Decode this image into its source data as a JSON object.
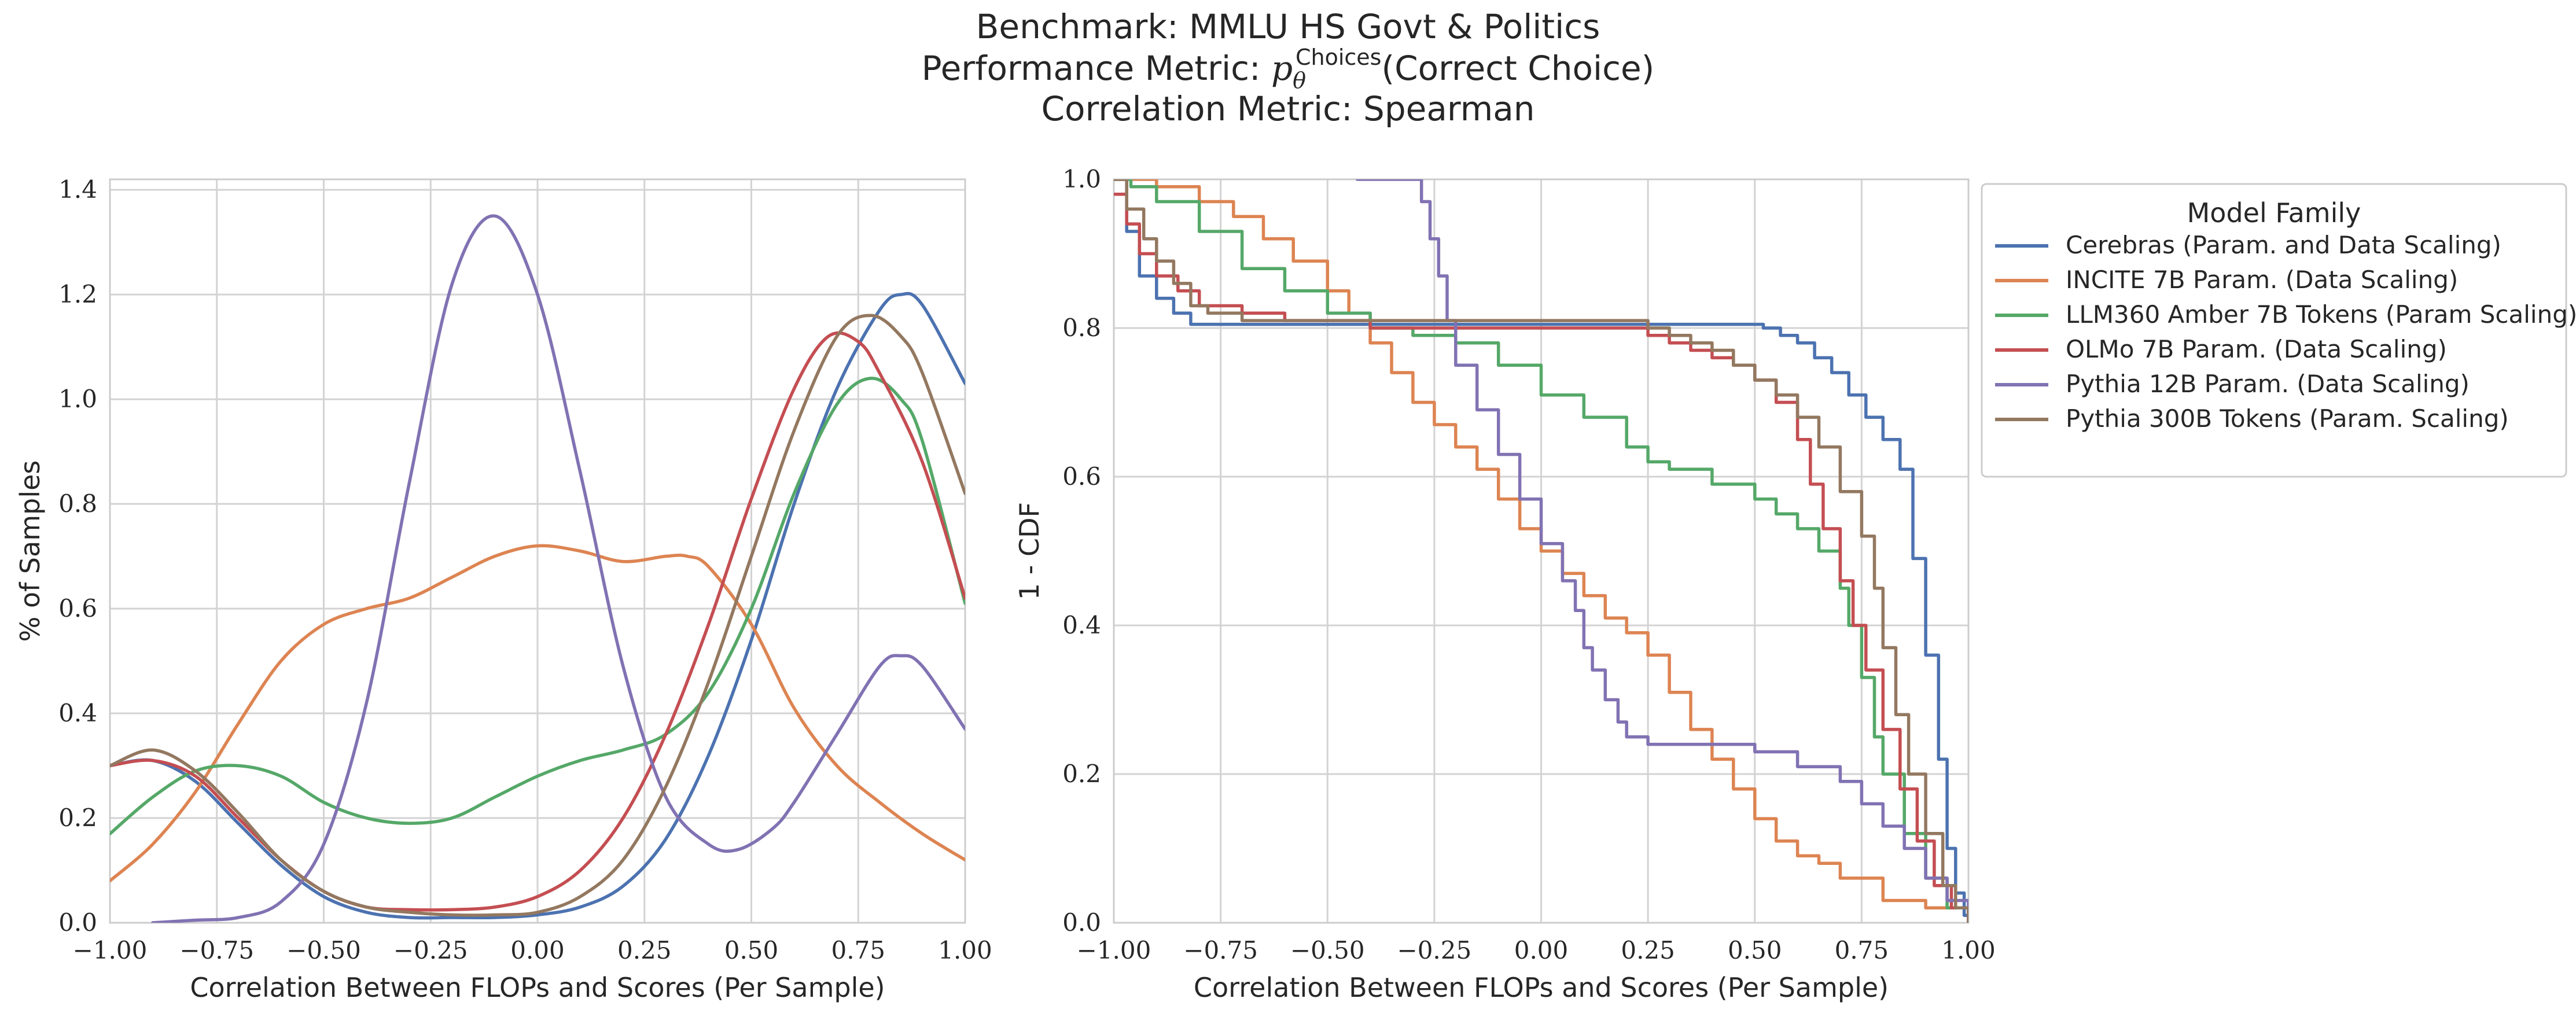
{
  "title_lines": [
    "Benchmark: MMLU HS Govt & Politics",
    "Performance Metric: pθChoices(Correct Choice)",
    "Correlation Metric: Spearman"
  ],
  "title_metric": {
    "prefix": "Performance Metric: ",
    "p": "p",
    "sub": "θ",
    "sup": "Choices",
    "suffix": "(Correct Choice)"
  },
  "colors": {
    "Cerebras": "#4c72b0",
    "INCITE": "#dd8452",
    "LLM360": "#55a868",
    "OLMo": "#c44e52",
    "Pythia12B": "#8172b3",
    "Pythia300B": "#937860",
    "grid": "#d3d3d3",
    "spine": "#cccccc",
    "text": "#262626"
  },
  "legend": {
    "title": "Model Family",
    "placement": "outside-right",
    "entries": [
      {
        "label": "Cerebras (Param. and Data Scaling)",
        "color_key": "Cerebras"
      },
      {
        "label": "INCITE 7B Param. (Data Scaling)",
        "color_key": "INCITE"
      },
      {
        "label": "LLM360 Amber 7B Tokens (Param Scaling)",
        "color_key": "LLM360"
      },
      {
        "label": "OLMo 7B Param. (Data Scaling)",
        "color_key": "OLMo"
      },
      {
        "label": "Pythia 12B Param. (Data Scaling)",
        "color_key": "Pythia12B"
      },
      {
        "label": "Pythia 300B Tokens (Param. Scaling)",
        "color_key": "Pythia300B"
      }
    ]
  },
  "chart_data": [
    {
      "type": "line",
      "xlabel": "Correlation Between FLOPs and Scores (Per Sample)",
      "ylabel": "% of Samples",
      "xlim": [
        -1.0,
        1.0
      ],
      "ylim": [
        0.0,
        1.42
      ],
      "xticks": [
        "−1.00",
        "−0.75",
        "−0.50",
        "−0.25",
        "0.00",
        "0.25",
        "0.50",
        "0.75",
        "1.00"
      ],
      "yticks": [
        "0.0",
        "0.2",
        "0.4",
        "0.6",
        "0.8",
        "1.0",
        "1.2",
        "1.4"
      ],
      "grid": true,
      "series": [
        {
          "name": "Cerebras (Param. and Data Scaling)",
          "color_key": "Cerebras",
          "x": [
            -1.0,
            -0.9,
            -0.8,
            -0.7,
            -0.6,
            -0.5,
            -0.4,
            -0.3,
            -0.2,
            -0.1,
            0.0,
            0.1,
            0.2,
            0.3,
            0.4,
            0.5,
            0.6,
            0.7,
            0.8,
            0.85,
            0.9,
            1.0
          ],
          "y": [
            0.3,
            0.31,
            0.27,
            0.19,
            0.11,
            0.05,
            0.02,
            0.01,
            0.01,
            0.01,
            0.015,
            0.03,
            0.07,
            0.16,
            0.32,
            0.54,
            0.8,
            1.02,
            1.17,
            1.2,
            1.18,
            1.03
          ]
        },
        {
          "name": "INCITE 7B Param. (Data Scaling)",
          "color_key": "INCITE",
          "x": [
            -1.0,
            -0.9,
            -0.8,
            -0.7,
            -0.6,
            -0.5,
            -0.4,
            -0.3,
            -0.2,
            -0.1,
            0.0,
            0.1,
            0.2,
            0.3,
            0.35,
            0.4,
            0.5,
            0.6,
            0.7,
            0.8,
            0.9,
            1.0
          ],
          "y": [
            0.08,
            0.15,
            0.25,
            0.38,
            0.5,
            0.57,
            0.6,
            0.62,
            0.66,
            0.7,
            0.72,
            0.71,
            0.69,
            0.7,
            0.7,
            0.68,
            0.57,
            0.41,
            0.3,
            0.23,
            0.17,
            0.12
          ]
        },
        {
          "name": "LLM360 Amber 7B Tokens (Param Scaling)",
          "color_key": "LLM360",
          "x": [
            -1.0,
            -0.9,
            -0.8,
            -0.7,
            -0.6,
            -0.5,
            -0.4,
            -0.3,
            -0.2,
            -0.1,
            0.0,
            0.1,
            0.2,
            0.3,
            0.4,
            0.5,
            0.6,
            0.7,
            0.78,
            0.85,
            0.9,
            1.0
          ],
          "y": [
            0.17,
            0.24,
            0.29,
            0.3,
            0.28,
            0.23,
            0.2,
            0.19,
            0.2,
            0.24,
            0.28,
            0.31,
            0.33,
            0.36,
            0.44,
            0.6,
            0.82,
            0.99,
            1.04,
            1.0,
            0.92,
            0.61
          ]
        },
        {
          "name": "OLMo 7B Param. (Data Scaling)",
          "color_key": "OLMo",
          "x": [
            -1.0,
            -0.9,
            -0.8,
            -0.7,
            -0.6,
            -0.5,
            -0.4,
            -0.3,
            -0.2,
            -0.1,
            0.0,
            0.1,
            0.2,
            0.3,
            0.4,
            0.5,
            0.6,
            0.68,
            0.75,
            0.8,
            0.9,
            1.0
          ],
          "y": [
            0.3,
            0.31,
            0.28,
            0.2,
            0.12,
            0.06,
            0.03,
            0.025,
            0.025,
            0.03,
            0.05,
            0.1,
            0.2,
            0.36,
            0.57,
            0.81,
            1.02,
            1.12,
            1.11,
            1.05,
            0.88,
            0.62
          ]
        },
        {
          "name": "Pythia 12B Param. (Data Scaling)",
          "color_key": "Pythia12B",
          "x": [
            -0.9,
            -0.8,
            -0.7,
            -0.6,
            -0.5,
            -0.4,
            -0.3,
            -0.2,
            -0.1,
            0.0,
            0.1,
            0.2,
            0.3,
            0.4,
            0.47,
            0.55,
            0.6,
            0.7,
            0.8,
            0.85,
            0.9,
            1.0
          ],
          "y": [
            0.0,
            0.005,
            0.01,
            0.04,
            0.15,
            0.42,
            0.84,
            1.22,
            1.35,
            1.2,
            0.86,
            0.49,
            0.24,
            0.15,
            0.14,
            0.18,
            0.23,
            0.36,
            0.49,
            0.51,
            0.49,
            0.37
          ]
        },
        {
          "name": "Pythia 300B Tokens (Param. Scaling)",
          "color_key": "Pythia300B",
          "x": [
            -1.0,
            -0.9,
            -0.8,
            -0.7,
            -0.6,
            -0.5,
            -0.4,
            -0.3,
            -0.2,
            -0.1,
            0.0,
            0.1,
            0.2,
            0.3,
            0.4,
            0.5,
            0.6,
            0.7,
            0.78,
            0.85,
            0.9,
            1.0
          ],
          "y": [
            0.3,
            0.33,
            0.29,
            0.21,
            0.12,
            0.06,
            0.03,
            0.02,
            0.015,
            0.015,
            0.02,
            0.05,
            0.12,
            0.26,
            0.46,
            0.7,
            0.94,
            1.12,
            1.16,
            1.12,
            1.05,
            0.82
          ]
        }
      ]
    },
    {
      "type": "line",
      "drawstyle": "steps",
      "xlabel": "Correlation Between FLOPs and Scores (Per Sample)",
      "ylabel": "1 - CDF",
      "xlim": [
        -1.0,
        1.0
      ],
      "ylim": [
        0.0,
        1.0
      ],
      "xticks": [
        "−1.00",
        "−0.75",
        "−0.50",
        "−0.25",
        "0.00",
        "0.25",
        "0.50",
        "0.75",
        "1.00"
      ],
      "yticks": [
        "0.0",
        "0.2",
        "0.4",
        "0.6",
        "0.8",
        "1.0"
      ],
      "grid": true,
      "series": [
        {
          "name": "Cerebras (Param. and Data Scaling)",
          "color_key": "Cerebras",
          "x": [
            -1.0,
            -0.97,
            -0.94,
            -0.9,
            -0.86,
            -0.82,
            0.52,
            0.56,
            0.6,
            0.64,
            0.68,
            0.72,
            0.76,
            0.8,
            0.84,
            0.87,
            0.9,
            0.93,
            0.95,
            0.97,
            0.99,
            1.0
          ],
          "y": [
            1.0,
            0.93,
            0.87,
            0.84,
            0.82,
            0.805,
            0.8,
            0.79,
            0.78,
            0.76,
            0.74,
            0.71,
            0.68,
            0.65,
            0.61,
            0.49,
            0.36,
            0.22,
            0.1,
            0.04,
            0.01,
            0.0
          ]
        },
        {
          "name": "INCITE 7B Param. (Data Scaling)",
          "color_key": "INCITE",
          "x": [
            -1.0,
            -0.9,
            -0.8,
            -0.72,
            -0.65,
            -0.58,
            -0.5,
            -0.45,
            -0.4,
            -0.35,
            -0.3,
            -0.25,
            -0.2,
            -0.15,
            -0.1,
            -0.05,
            0.0,
            0.05,
            0.1,
            0.15,
            0.2,
            0.25,
            0.3,
            0.35,
            0.4,
            0.45,
            0.5,
            0.55,
            0.6,
            0.65,
            0.7,
            0.8,
            0.9,
            1.0
          ],
          "y": [
            1.0,
            0.99,
            0.97,
            0.95,
            0.92,
            0.89,
            0.85,
            0.82,
            0.78,
            0.74,
            0.7,
            0.67,
            0.64,
            0.61,
            0.57,
            0.53,
            0.5,
            0.47,
            0.44,
            0.41,
            0.39,
            0.36,
            0.31,
            0.26,
            0.22,
            0.18,
            0.14,
            0.11,
            0.09,
            0.08,
            0.06,
            0.03,
            0.02,
            0.0
          ]
        },
        {
          "name": "LLM360 Amber 7B Tokens (Param Scaling)",
          "color_key": "LLM360",
          "x": [
            -1.0,
            -0.96,
            -0.9,
            -0.8,
            -0.7,
            -0.6,
            -0.5,
            -0.4,
            -0.3,
            -0.2,
            -0.1,
            0.0,
            0.1,
            0.2,
            0.25,
            0.3,
            0.4,
            0.5,
            0.55,
            0.6,
            0.65,
            0.7,
            0.72,
            0.75,
            0.78,
            0.8,
            0.85,
            0.9,
            0.95,
            1.0
          ],
          "y": [
            1.0,
            0.99,
            0.97,
            0.93,
            0.88,
            0.85,
            0.82,
            0.8,
            0.79,
            0.78,
            0.75,
            0.71,
            0.68,
            0.64,
            0.62,
            0.61,
            0.59,
            0.57,
            0.55,
            0.53,
            0.5,
            0.45,
            0.4,
            0.33,
            0.25,
            0.2,
            0.12,
            0.06,
            0.02,
            0.0
          ]
        },
        {
          "name": "OLMo 7B Param. (Data Scaling)",
          "color_key": "OLMo",
          "x": [
            -1.0,
            -0.97,
            -0.94,
            -0.9,
            -0.85,
            -0.8,
            -0.7,
            -0.6,
            -0.5,
            -0.4,
            0.2,
            0.25,
            0.3,
            0.35,
            0.4,
            0.45,
            0.5,
            0.55,
            0.6,
            0.63,
            0.66,
            0.7,
            0.73,
            0.76,
            0.8,
            0.84,
            0.88,
            0.92,
            0.96,
            1.0
          ],
          "y": [
            0.98,
            0.94,
            0.9,
            0.87,
            0.85,
            0.83,
            0.82,
            0.81,
            0.81,
            0.8,
            0.8,
            0.79,
            0.78,
            0.77,
            0.76,
            0.75,
            0.73,
            0.7,
            0.65,
            0.59,
            0.53,
            0.46,
            0.4,
            0.34,
            0.26,
            0.18,
            0.11,
            0.05,
            0.02,
            0.0
          ]
        },
        {
          "name": "Pythia 12B Param. (Data Scaling)",
          "color_key": "Pythia12B",
          "x": [
            -0.43,
            -0.28,
            -0.26,
            -0.24,
            -0.22,
            -0.2,
            -0.15,
            -0.1,
            -0.05,
            0.0,
            0.05,
            0.08,
            0.1,
            0.12,
            0.15,
            0.18,
            0.2,
            0.25,
            0.3,
            0.4,
            0.5,
            0.6,
            0.7,
            0.75,
            0.8,
            0.85,
            0.9,
            0.95,
            1.0
          ],
          "y": [
            1.0,
            0.97,
            0.92,
            0.87,
            0.81,
            0.75,
            0.69,
            0.63,
            0.57,
            0.51,
            0.46,
            0.42,
            0.37,
            0.34,
            0.3,
            0.27,
            0.25,
            0.24,
            0.24,
            0.24,
            0.23,
            0.21,
            0.19,
            0.16,
            0.13,
            0.1,
            0.06,
            0.03,
            0.0
          ]
        },
        {
          "name": "Pythia 300B Tokens (Param. Scaling)",
          "color_key": "Pythia300B",
          "x": [
            -1.0,
            -0.97,
            -0.93,
            -0.9,
            -0.86,
            -0.82,
            -0.78,
            -0.7,
            -0.6,
            -0.5,
            0.0,
            0.25,
            0.3,
            0.35,
            0.4,
            0.45,
            0.5,
            0.55,
            0.6,
            0.65,
            0.7,
            0.75,
            0.78,
            0.8,
            0.83,
            0.86,
            0.9,
            0.94,
            0.97,
            1.0
          ],
          "y": [
            1.0,
            0.96,
            0.92,
            0.89,
            0.86,
            0.83,
            0.82,
            0.81,
            0.81,
            0.81,
            0.81,
            0.8,
            0.79,
            0.78,
            0.77,
            0.75,
            0.73,
            0.71,
            0.68,
            0.64,
            0.58,
            0.52,
            0.45,
            0.37,
            0.28,
            0.2,
            0.12,
            0.05,
            0.02,
            0.0
          ]
        }
      ]
    }
  ]
}
